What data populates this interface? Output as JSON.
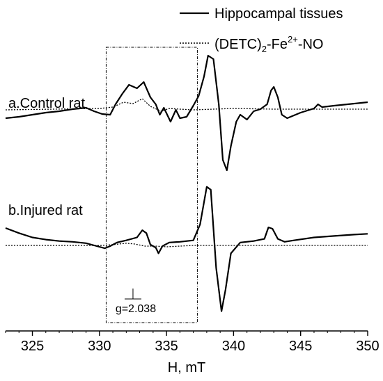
{
  "chart_data": {
    "type": "line",
    "title": "",
    "xlabel": "H, mT",
    "ylabel": "",
    "xlim": [
      323,
      350
    ],
    "xticks": [
      "325",
      "330",
      "335",
      "340",
      "345",
      "350"
    ],
    "grid": false,
    "legend_position": "top-right",
    "legend": [
      {
        "label_parts": [
          "Hippocampal tissues"
        ],
        "style": "solid"
      },
      {
        "label_parts": [
          "(DETC)",
          "2",
          "-Fe",
          "2+",
          "-NO"
        ],
        "style": "dotted"
      }
    ],
    "series_labels": [
      "a.Control rat",
      "b.Injured rat"
    ],
    "annotation": {
      "text": "g=2.038",
      "at_x": 332.5,
      "box_x": [
        330.5,
        337.3
      ]
    },
    "series": [
      {
        "name": "a.Control rat",
        "style": "solid",
        "points": [
          [
            323,
            20
          ],
          [
            324,
            22
          ],
          [
            325,
            25
          ],
          [
            326,
            28
          ],
          [
            327,
            30
          ],
          [
            328,
            33
          ],
          [
            329,
            35
          ],
          [
            329.6,
            30
          ],
          [
            330.2,
            26
          ],
          [
            330.8,
            25
          ],
          [
            331.2,
            40
          ],
          [
            331.7,
            55
          ],
          [
            332.2,
            68
          ],
          [
            332.8,
            63
          ],
          [
            333.3,
            72
          ],
          [
            333.8,
            50
          ],
          [
            334.2,
            40
          ],
          [
            334.5,
            25
          ],
          [
            334.8,
            35
          ],
          [
            335.3,
            15
          ],
          [
            335.7,
            32
          ],
          [
            336,
            20
          ],
          [
            336.5,
            22
          ],
          [
            337,
            38
          ],
          [
            337.4,
            52
          ],
          [
            337.8,
            80
          ],
          [
            338.1,
            110
          ],
          [
            338.5,
            105
          ],
          [
            338.9,
            40
          ],
          [
            339.2,
            -40
          ],
          [
            339.5,
            -55
          ],
          [
            339.8,
            -20
          ],
          [
            340.2,
            15
          ],
          [
            340.5,
            25
          ],
          [
            341,
            18
          ],
          [
            341.5,
            30
          ],
          [
            342,
            33
          ],
          [
            342.5,
            40
          ],
          [
            342.8,
            60
          ],
          [
            343,
            65
          ],
          [
            343.3,
            50
          ],
          [
            343.6,
            25
          ],
          [
            344,
            20
          ],
          [
            345,
            28
          ],
          [
            346,
            34
          ],
          [
            346.3,
            40
          ],
          [
            346.6,
            36
          ],
          [
            347.5,
            38
          ],
          [
            348.5,
            40
          ],
          [
            349.5,
            42
          ],
          [
            350,
            43
          ]
        ]
      },
      {
        "name": "a.Control rat",
        "style": "dotted",
        "points": [
          [
            323,
            32
          ],
          [
            330,
            34
          ],
          [
            331,
            36
          ],
          [
            331.8,
            43
          ],
          [
            332.5,
            41
          ],
          [
            333.2,
            48
          ],
          [
            333.8,
            37
          ],
          [
            334.6,
            30
          ],
          [
            335.2,
            34
          ],
          [
            336,
            33
          ],
          [
            337,
            32
          ],
          [
            340,
            34
          ],
          [
            343,
            33
          ],
          [
            350,
            33
          ]
        ]
      },
      {
        "name": "b.Injured rat",
        "style": "solid",
        "points": [
          [
            323,
            75
          ],
          [
            324,
            68
          ],
          [
            325,
            62
          ],
          [
            326,
            59
          ],
          [
            327,
            57
          ],
          [
            328,
            56
          ],
          [
            329,
            54
          ],
          [
            329.8,
            50
          ],
          [
            330.4,
            47
          ],
          [
            330.8,
            50
          ],
          [
            331.3,
            55
          ],
          [
            332,
            58
          ],
          [
            332.8,
            62
          ],
          [
            333.2,
            72
          ],
          [
            333.5,
            68
          ],
          [
            333.8,
            52
          ],
          [
            334.2,
            48
          ],
          [
            334.4,
            40
          ],
          [
            334.7,
            50
          ],
          [
            335.2,
            55
          ],
          [
            336,
            56
          ],
          [
            337,
            58
          ],
          [
            337.5,
            80
          ],
          [
            338,
            132
          ],
          [
            338.3,
            128
          ],
          [
            338.7,
            20
          ],
          [
            339.1,
            -40
          ],
          [
            339.4,
            -10
          ],
          [
            339.8,
            40
          ],
          [
            340.5,
            55
          ],
          [
            341.5,
            57
          ],
          [
            342.3,
            60
          ],
          [
            342.6,
            76
          ],
          [
            342.9,
            74
          ],
          [
            343.3,
            60
          ],
          [
            343.8,
            56
          ],
          [
            344.5,
            58
          ],
          [
            346,
            62
          ],
          [
            347.5,
            64
          ],
          [
            349,
            66
          ],
          [
            350,
            67
          ]
        ]
      },
      {
        "name": "b.Injured rat",
        "style": "dotted",
        "points": [
          [
            323,
            51
          ],
          [
            330,
            51
          ],
          [
            331,
            52
          ],
          [
            332,
            54
          ],
          [
            332.6,
            53
          ],
          [
            333.4,
            50
          ],
          [
            334.2,
            50
          ],
          [
            335,
            49
          ],
          [
            336,
            50
          ],
          [
            337,
            51
          ],
          [
            340,
            51
          ],
          [
            343,
            51
          ],
          [
            350,
            51
          ]
        ]
      }
    ]
  }
}
